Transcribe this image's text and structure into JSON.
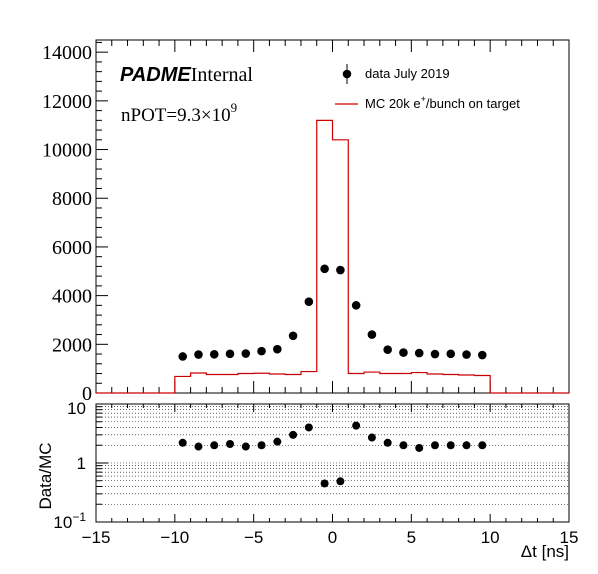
{
  "chart_data": [
    {
      "type": "histogram-with-points",
      "labels": {
        "brand_bold": "PADME",
        "brand_normal": "Internal",
        "npot_prefix": "nPOT=9.3×10",
        "npot_exp": "9"
      },
      "legend": {
        "placement": "top-right",
        "data_label": "data July 2019",
        "mc_label_prefix": "MC 20k e",
        "mc_label_sup": "+",
        "mc_label_suffix": "/bunch on target"
      },
      "colors": {
        "mc": "#cc0000",
        "data": "#000000"
      },
      "xlim": [
        -15,
        15
      ],
      "ylim": [
        0,
        14500
      ],
      "y_ticks": [
        0,
        2000,
        4000,
        6000,
        8000,
        10000,
        12000,
        14000
      ],
      "y_tick_labels": [
        "0",
        "2000",
        "4000",
        "6000",
        "8000",
        "10000",
        "12000",
        "14000"
      ],
      "mc_bin_edges": [
        -15,
        -10,
        -9,
        -8,
        -7,
        -6,
        -5,
        -4,
        -3,
        -2,
        -1,
        0,
        1,
        2,
        3,
        4,
        5,
        6,
        7,
        8,
        9,
        10,
        15
      ],
      "mc_values": [
        0,
        680,
        820,
        760,
        760,
        800,
        810,
        780,
        760,
        880,
        11200,
        10400,
        800,
        860,
        800,
        800,
        840,
        780,
        760,
        740,
        720,
        0
      ],
      "data_points": {
        "x": [
          -9.5,
          -8.5,
          -7.5,
          -6.5,
          -5.5,
          -4.5,
          -3.5,
          -2.5,
          -1.5,
          -0.5,
          0.5,
          1.5,
          2.5,
          3.5,
          4.5,
          5.5,
          6.5,
          7.5,
          8.5,
          9.5
        ],
        "y": [
          1500,
          1580,
          1590,
          1610,
          1620,
          1720,
          1800,
          2350,
          3750,
          5100,
          5050,
          3600,
          2400,
          1780,
          1660,
          1640,
          1600,
          1610,
          1580,
          1560
        ]
      }
    },
    {
      "type": "ratio-scatter",
      "ylabel": "Data/MC",
      "xlabel": "Δt [ns]",
      "xlim": [
        -15,
        15
      ],
      "ylim": [
        0.1,
        10
      ],
      "y_scale": "log",
      "grid": true,
      "x_ticks": [
        -15,
        -10,
        -5,
        0,
        5,
        10,
        15
      ],
      "x_tick_labels": [
        "−15",
        "−10",
        "−5",
        "0",
        "5",
        "10",
        "15"
      ],
      "y_tick_labels": {
        "low_base": "10",
        "low_exp": "−1",
        "mid": "1",
        "high": "10"
      },
      "x": [
        -9.5,
        -8.5,
        -7.5,
        -6.5,
        -5.5,
        -4.5,
        -3.5,
        -2.5,
        -1.5,
        -0.5,
        0.5,
        1.5,
        2.5,
        3.5,
        4.5,
        5.5,
        6.5,
        7.5,
        8.5,
        9.5
      ],
      "y": [
        2.2,
        1.9,
        2.0,
        2.1,
        1.9,
        2.0,
        2.3,
        3.0,
        4.0,
        0.45,
        0.49,
        4.3,
        2.7,
        2.2,
        2.0,
        1.8,
        2.0,
        2.0,
        2.0,
        2.0
      ]
    }
  ]
}
